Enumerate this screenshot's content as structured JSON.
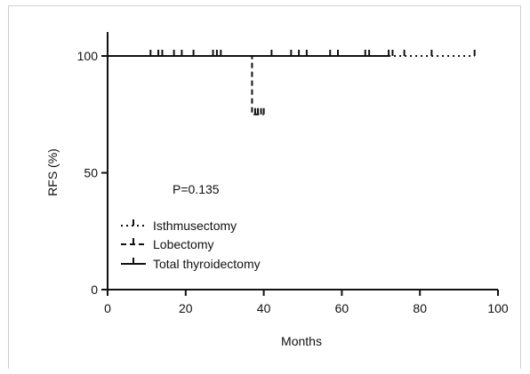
{
  "chart_data": {
    "type": "line",
    "subtype": "kaplan-meier step",
    "title": "",
    "xlabel": "Months",
    "ylabel": "RFS (%)",
    "xlim": [
      0,
      100
    ],
    "ylim": [
      0,
      100
    ],
    "xticks": [
      0,
      20,
      40,
      60,
      80,
      100
    ],
    "yticks": [
      0,
      50,
      100
    ],
    "grid": false,
    "legend_position": "bottom-left",
    "annotation": "P=0.135",
    "series": [
      {
        "name": "Isthmusectomy",
        "style": "dotted",
        "steps": [
          [
            72,
            100
          ],
          [
            94,
            100
          ]
        ],
        "censor_x": [
          73,
          76,
          83,
          94
        ]
      },
      {
        "name": "Lobectomy",
        "style": "dashed",
        "steps": [
          [
            0,
            100
          ],
          [
            37,
            100
          ],
          [
            37,
            75
          ],
          [
            40,
            75
          ]
        ],
        "censor_x": [
          37.8,
          38.5,
          39.3,
          40
        ]
      },
      {
        "name": "Total thyroidectomy",
        "style": "solid",
        "steps": [
          [
            0,
            100
          ],
          [
            72,
            100
          ]
        ],
        "censor_x": [
          11,
          13,
          14,
          17,
          19,
          22,
          27,
          28,
          29,
          42,
          47,
          49,
          51,
          57,
          59,
          66,
          67,
          72
        ]
      }
    ]
  }
}
